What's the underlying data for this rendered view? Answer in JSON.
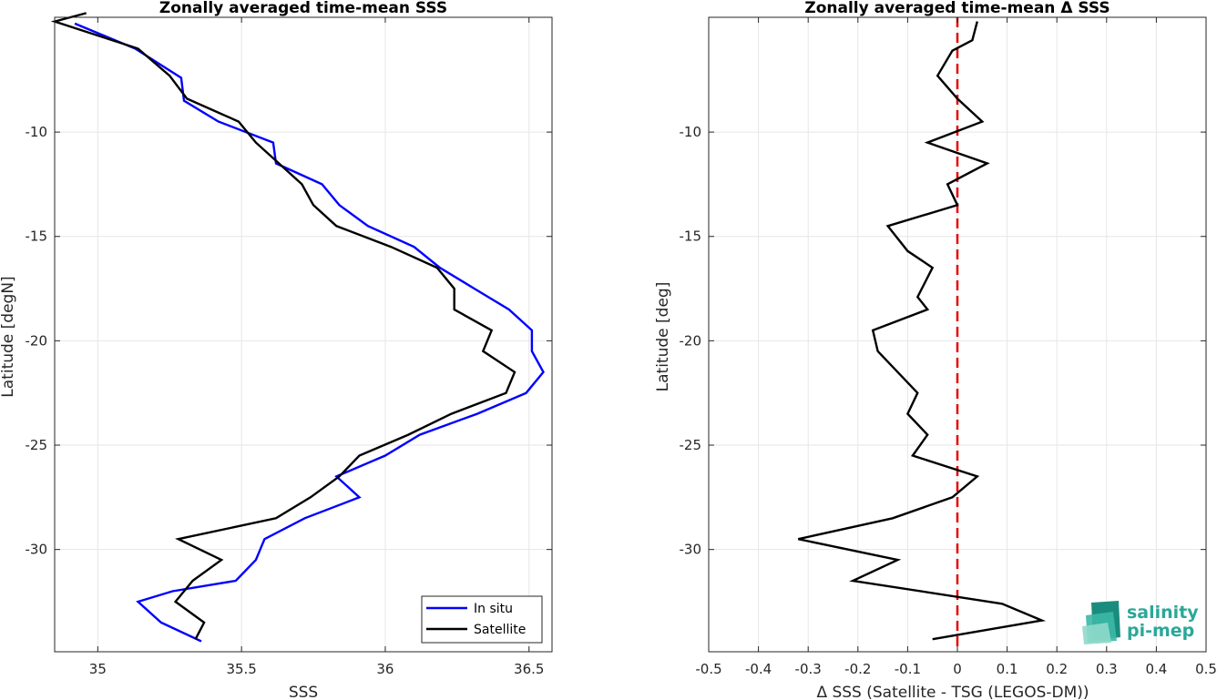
{
  "chart_data": [
    {
      "type": "line",
      "title": "Zonally averaged time-mean SSS",
      "xlabel": "SSS",
      "ylabel": "Latitude [degN]",
      "xlim": [
        34.85,
        36.58
      ],
      "ylim": [
        -34.9,
        -4.5
      ],
      "xticks": [
        35,
        35.5,
        36,
        36.5
      ],
      "yticks": [
        -10,
        -15,
        -20,
        -25,
        -30
      ],
      "grid": true,
      "legend_position": "bottom-right",
      "series": [
        {
          "name": "In situ",
          "color": "#0000ff",
          "points": [
            [
              34.92,
              -4.8
            ],
            [
              35.13,
              -6.0
            ],
            [
              35.29,
              -7.4
            ],
            [
              35.3,
              -8.5
            ],
            [
              35.42,
              -9.5
            ],
            [
              35.61,
              -10.5
            ],
            [
              35.62,
              -11.5
            ],
            [
              35.78,
              -12.5
            ],
            [
              35.84,
              -13.5
            ],
            [
              35.94,
              -14.5
            ],
            [
              36.1,
              -15.5
            ],
            [
              36.19,
              -16.5
            ],
            [
              36.31,
              -17.5
            ],
            [
              36.43,
              -18.5
            ],
            [
              36.51,
              -19.5
            ],
            [
              36.51,
              -20.5
            ],
            [
              36.55,
              -21.5
            ],
            [
              36.49,
              -22.5
            ],
            [
              36.32,
              -23.5
            ],
            [
              36.12,
              -24.5
            ],
            [
              36.0,
              -25.5
            ],
            [
              35.83,
              -26.5
            ],
            [
              35.91,
              -27.5
            ],
            [
              35.72,
              -28.5
            ],
            [
              35.58,
              -29.5
            ],
            [
              35.55,
              -30.5
            ],
            [
              35.48,
              -31.5
            ],
            [
              35.26,
              -32.0
            ],
            [
              35.14,
              -32.5
            ],
            [
              35.22,
              -33.5
            ],
            [
              35.36,
              -34.4
            ]
          ]
        },
        {
          "name": "Satellite",
          "color": "#000000",
          "points": [
            [
              34.96,
              -4.3
            ],
            [
              34.85,
              -4.7
            ],
            [
              35.14,
              -6.0
            ],
            [
              35.25,
              -7.3
            ],
            [
              35.31,
              -8.4
            ],
            [
              35.49,
              -9.5
            ],
            [
              35.55,
              -10.5
            ],
            [
              35.63,
              -11.5
            ],
            [
              35.71,
              -12.5
            ],
            [
              35.75,
              -13.5
            ],
            [
              35.83,
              -14.5
            ],
            [
              36.02,
              -15.5
            ],
            [
              36.18,
              -16.5
            ],
            [
              36.24,
              -17.5
            ],
            [
              36.24,
              -18.5
            ],
            [
              36.37,
              -19.5
            ],
            [
              36.34,
              -20.5
            ],
            [
              36.45,
              -21.5
            ],
            [
              36.42,
              -22.5
            ],
            [
              36.23,
              -23.5
            ],
            [
              36.08,
              -24.5
            ],
            [
              35.91,
              -25.5
            ],
            [
              35.84,
              -26.5
            ],
            [
              35.74,
              -27.5
            ],
            [
              35.62,
              -28.5
            ],
            [
              35.28,
              -29.5
            ],
            [
              35.43,
              -30.5
            ],
            [
              35.33,
              -31.5
            ],
            [
              35.27,
              -32.5
            ],
            [
              35.37,
              -33.5
            ],
            [
              35.34,
              -34.3
            ]
          ]
        }
      ]
    },
    {
      "type": "line",
      "title": "Zonally averaged time-mean Δ SSS",
      "xlabel": "Δ SSS (Satellite - TSG (LEGOS-DM))",
      "ylabel": "Latitude [deg]",
      "xlim": [
        -0.5,
        0.5
      ],
      "ylim": [
        -34.9,
        -4.5
      ],
      "xticks": [
        -0.5,
        -0.4,
        -0.3,
        -0.2,
        -0.1,
        0,
        0.1,
        0.2,
        0.3,
        0.4,
        0.5
      ],
      "xtick_labels": [
        "-0.5",
        "-0.4",
        "-0.3",
        "-0.2",
        "-0.1",
        "0",
        "0.1",
        "0.2",
        "0.3",
        "0.4",
        "0.5"
      ],
      "yticks": [
        -10,
        -15,
        -20,
        -25,
        -30
      ],
      "grid": true,
      "reference_line": {
        "x": 0,
        "color": "#e60000",
        "style": "dashed"
      },
      "series": [
        {
          "color": "#000000",
          "points": [
            [
              0.04,
              -4.7
            ],
            [
              0.03,
              -5.6
            ],
            [
              -0.01,
              -6.1
            ],
            [
              -0.04,
              -7.3
            ],
            [
              0.0,
              -8.4
            ],
            [
              0.05,
              -9.5
            ],
            [
              -0.06,
              -10.5
            ],
            [
              0.06,
              -11.5
            ],
            [
              -0.02,
              -12.5
            ],
            [
              0.0,
              -13.5
            ],
            [
              -0.14,
              -14.5
            ],
            [
              -0.1,
              -15.7
            ],
            [
              -0.05,
              -16.5
            ],
            [
              -0.08,
              -17.9
            ],
            [
              -0.06,
              -18.5
            ],
            [
              -0.17,
              -19.5
            ],
            [
              -0.16,
              -20.5
            ],
            [
              -0.12,
              -21.5
            ],
            [
              -0.08,
              -22.5
            ],
            [
              -0.1,
              -23.5
            ],
            [
              -0.06,
              -24.5
            ],
            [
              -0.09,
              -25.5
            ],
            [
              0.04,
              -26.5
            ],
            [
              -0.01,
              -27.5
            ],
            [
              -0.13,
              -28.5
            ],
            [
              -0.32,
              -29.5
            ],
            [
              -0.12,
              -30.5
            ],
            [
              -0.21,
              -31.5
            ],
            [
              0.09,
              -32.6
            ],
            [
              0.17,
              -33.4
            ],
            [
              -0.05,
              -34.3
            ]
          ]
        }
      ]
    }
  ],
  "legend": {
    "items": [
      "In situ",
      "Satellite"
    ]
  },
  "logo": {
    "line1": "salinity",
    "line2": "pi-mep"
  }
}
